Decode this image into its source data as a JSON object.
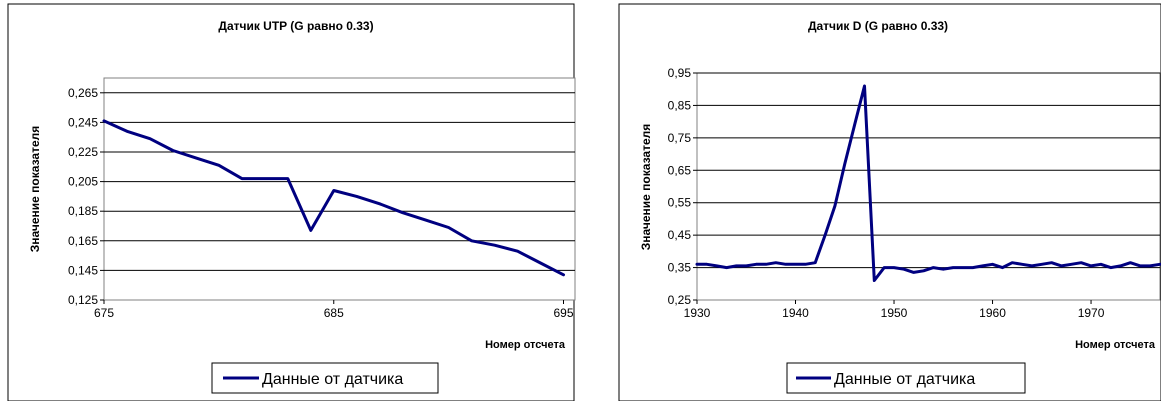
{
  "chart_data": [
    {
      "type": "line",
      "title": "Датчик UTP (G равно 0.33)",
      "xlabel": "Номер отсчета",
      "ylabel": "Значение показателя",
      "xlim": [
        675,
        695.5
      ],
      "ylim": [
        0.125,
        0.275
      ],
      "x_ticks": [
        "675",
        "685",
        "695"
      ],
      "y_ticks": [
        "0,125",
        "0,145",
        "0,165",
        "0,185",
        "0,205",
        "0,225",
        "0,245",
        "0,265"
      ],
      "grid": true,
      "legend_position": "bottom",
      "series": [
        {
          "name": "Данные от датчика",
          "color": "#000080",
          "x": [
            675,
            676,
            677,
            678,
            679,
            680,
            681,
            682,
            683,
            684,
            685,
            686,
            687,
            688,
            689,
            690,
            691,
            692,
            693,
            694,
            695
          ],
          "y": [
            0.246,
            0.239,
            0.234,
            0.226,
            0.221,
            0.216,
            0.207,
            0.207,
            0.207,
            0.172,
            0.199,
            0.195,
            0.19,
            0.184,
            0.179,
            0.174,
            0.165,
            0.162,
            0.158,
            0.15,
            0.142
          ]
        }
      ]
    },
    {
      "type": "line",
      "title": "Датчик D (G равно 0.33)",
      "xlabel": "Номер отсчета",
      "ylabel": "Значение показателя",
      "xlim": [
        1930,
        1977
      ],
      "ylim": [
        0.25,
        0.95
      ],
      "x_ticks": [
        "1930",
        "1940",
        "1950",
        "1960",
        "1970"
      ],
      "y_ticks": [
        "0,25",
        "0,35",
        "0,45",
        "0,55",
        "0,65",
        "0,75",
        "0,85",
        "0,95"
      ],
      "grid": true,
      "legend_position": "bottom",
      "series": [
        {
          "name": "Данные от датчика",
          "color": "#000080",
          "x": [
            1930,
            1931,
            1932,
            1933,
            1934,
            1935,
            1936,
            1937,
            1938,
            1939,
            1940,
            1941,
            1942,
            1943,
            1944,
            1945,
            1946,
            1947,
            1948,
            1949,
            1950,
            1951,
            1952,
            1953,
            1954,
            1955,
            1956,
            1957,
            1958,
            1959,
            1960,
            1961,
            1962,
            1963,
            1964,
            1965,
            1966,
            1967,
            1968,
            1969,
            1970,
            1971,
            1972,
            1973,
            1974,
            1975,
            1976,
            1977
          ],
          "y": [
            0.36,
            0.36,
            0.355,
            0.35,
            0.355,
            0.355,
            0.36,
            0.36,
            0.365,
            0.36,
            0.36,
            0.36,
            0.365,
            0.45,
            0.54,
            0.67,
            0.79,
            0.91,
            0.31,
            0.35,
            0.35,
            0.345,
            0.335,
            0.34,
            0.35,
            0.345,
            0.35,
            0.35,
            0.35,
            0.355,
            0.36,
            0.35,
            0.365,
            0.36,
            0.355,
            0.36,
            0.365,
            0.355,
            0.36,
            0.365,
            0.355,
            0.36,
            0.35,
            0.355,
            0.365,
            0.355,
            0.355,
            0.36
          ]
        }
      ]
    }
  ]
}
